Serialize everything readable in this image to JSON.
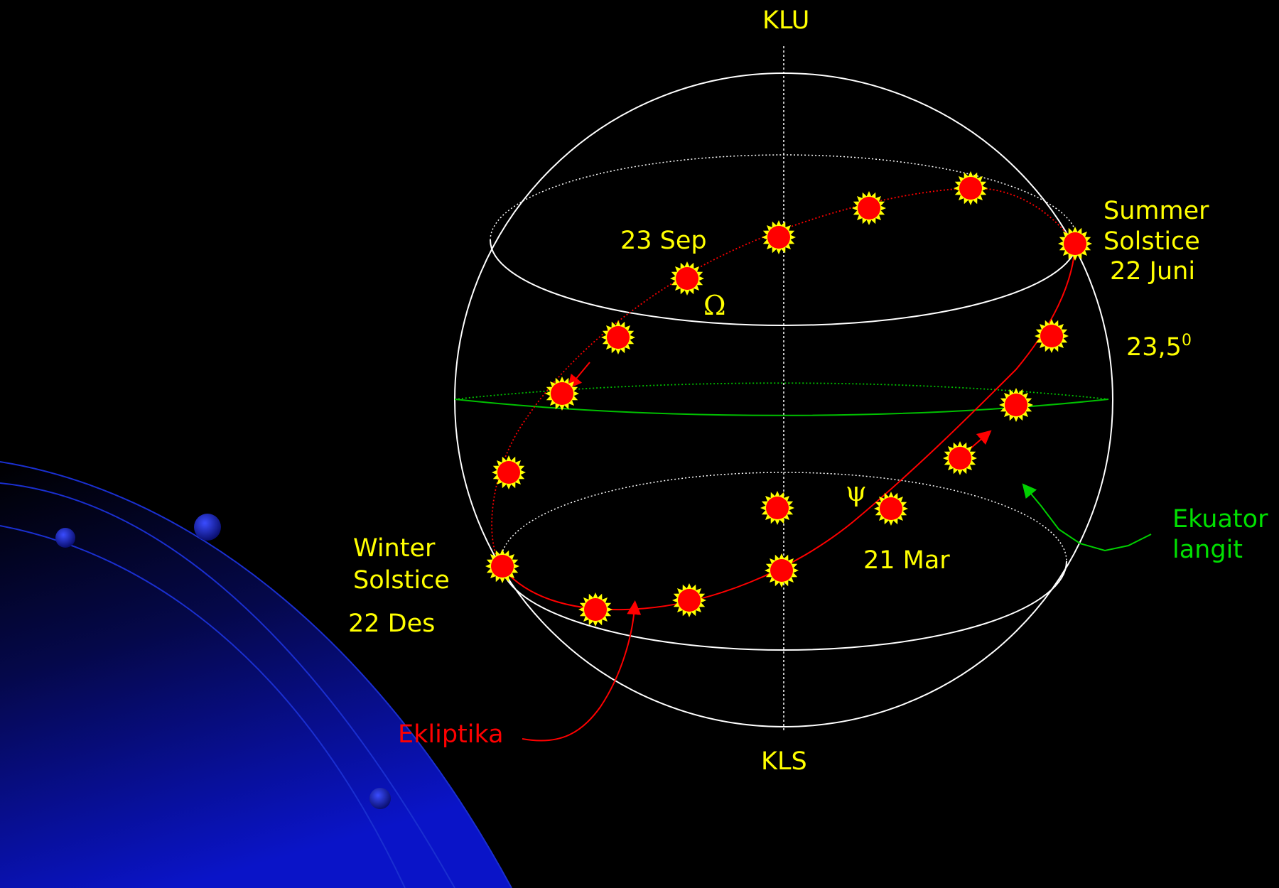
{
  "labels": {
    "north_pole": "KLU",
    "south_pole": "KLS",
    "sep_date": "23 Sep",
    "omega_symbol": "Ω",
    "psi_symbol": "ψ",
    "mar_date": "21 Mar",
    "summer_line1": "Summer",
    "summer_line2": "Solstice",
    "summer_date": "22 Juni",
    "obliquity_value": "23,5",
    "obliquity_unit": "0",
    "winter_line1": "Winter",
    "winter_line2": "Solstice",
    "winter_date": "22 Des",
    "ecliptic_label": "Ekliptika",
    "equator_line1": "Ekuator",
    "equator_line2": "langit"
  },
  "colors": {
    "background": "#000000",
    "sphere": "#ffffff",
    "label": "#ffff00",
    "ecliptic": "#ff0000",
    "equator": "#00c000",
    "sun_fill": "#ff0000",
    "sun_rim": "#ffff00",
    "planet_arc": "#1a2fd0"
  },
  "sun_markers": 17
}
